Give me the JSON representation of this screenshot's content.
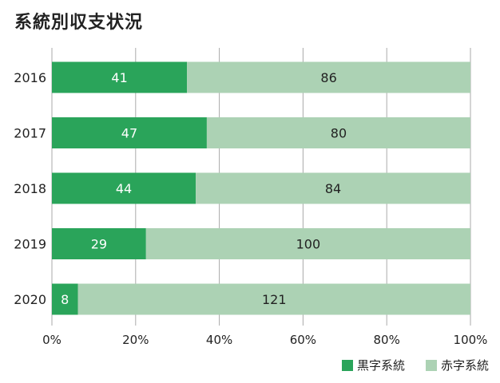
{
  "title": "系統別収支状況",
  "colors": {
    "black": "#2aa45a",
    "red": "#acd2b4",
    "grid": "#aaaaaa",
    "text": "#222222",
    "label_on_dark": "#ffffff"
  },
  "chart_data": {
    "type": "bar",
    "orientation": "horizontal",
    "stacked": "percent",
    "title": "系統別収支状況",
    "categories": [
      "2016",
      "2017",
      "2018",
      "2019",
      "2020"
    ],
    "series": [
      {
        "name": "黒字系統",
        "values": [
          41,
          47,
          44,
          29,
          8
        ],
        "color": "#2aa45a"
      },
      {
        "name": "赤字系統",
        "values": [
          86,
          80,
          84,
          100,
          121
        ],
        "color": "#acd2b4"
      }
    ],
    "x_ticks": [
      "0%",
      "20%",
      "40%",
      "60%",
      "80%",
      "100%"
    ],
    "xlim": [
      0,
      100
    ],
    "grid": true,
    "legend_position": "bottom-right"
  }
}
